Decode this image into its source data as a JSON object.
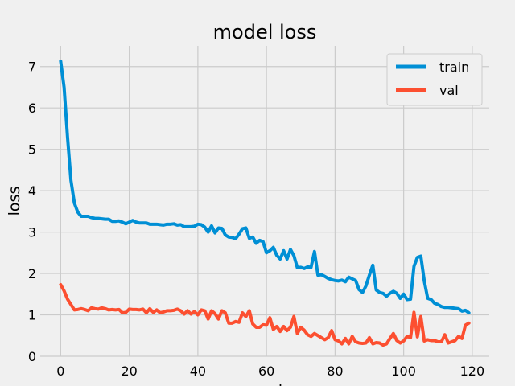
{
  "chart_data": {
    "type": "line",
    "title": "model loss",
    "xlabel": "epoch",
    "ylabel": "loss",
    "xlim": [
      -5.95,
      124.95
    ],
    "ylim": [
      0,
      7.5
    ],
    "xticks": [
      0,
      20,
      40,
      60,
      80,
      100,
      120
    ],
    "yticks": [
      0,
      1,
      2,
      3,
      4,
      5,
      6,
      7
    ],
    "grid": true,
    "legend_position": "top-right",
    "series": [
      {
        "name": "train",
        "color": "#008fd5",
        "y": [
          7.13,
          6.5,
          5.3,
          4.25,
          3.7,
          3.48,
          3.38,
          3.38,
          3.38,
          3.35,
          3.33,
          3.33,
          3.32,
          3.31,
          3.31,
          3.26,
          3.26,
          3.27,
          3.24,
          3.2,
          3.24,
          3.28,
          3.24,
          3.22,
          3.22,
          3.22,
          3.19,
          3.19,
          3.19,
          3.18,
          3.17,
          3.19,
          3.19,
          3.2,
          3.17,
          3.18,
          3.13,
          3.13,
          3.13,
          3.14,
          3.19,
          3.18,
          3.12,
          3.0,
          3.15,
          2.98,
          3.1,
          3.09,
          2.93,
          2.88,
          2.87,
          2.84,
          2.95,
          3.08,
          3.1,
          2.85,
          2.88,
          2.73,
          2.8,
          2.77,
          2.5,
          2.55,
          2.63,
          2.44,
          2.35,
          2.55,
          2.35,
          2.58,
          2.43,
          2.14,
          2.15,
          2.12,
          2.16,
          2.15,
          2.53,
          1.96,
          1.97,
          1.93,
          1.88,
          1.85,
          1.83,
          1.82,
          1.84,
          1.8,
          1.91,
          1.87,
          1.83,
          1.61,
          1.54,
          1.7,
          1.96,
          2.2,
          1.6,
          1.54,
          1.52,
          1.45,
          1.52,
          1.57,
          1.52,
          1.4,
          1.5,
          1.37,
          1.38,
          2.17,
          2.39,
          2.42,
          1.82,
          1.4,
          1.37,
          1.28,
          1.25,
          1.2,
          1.18,
          1.18,
          1.17,
          1.16,
          1.15,
          1.09,
          1.11,
          1.05
        ]
      },
      {
        "name": "val",
        "color": "#fc4f30",
        "y": [
          1.73,
          1.58,
          1.38,
          1.25,
          1.12,
          1.13,
          1.15,
          1.13,
          1.1,
          1.17,
          1.15,
          1.14,
          1.17,
          1.15,
          1.12,
          1.13,
          1.12,
          1.13,
          1.05,
          1.06,
          1.14,
          1.13,
          1.13,
          1.12,
          1.14,
          1.05,
          1.15,
          1.06,
          1.12,
          1.05,
          1.07,
          1.1,
          1.1,
          1.11,
          1.14,
          1.1,
          1.02,
          1.1,
          1.02,
          1.08,
          1.0,
          1.12,
          1.1,
          0.9,
          1.1,
          1.03,
          0.9,
          1.1,
          1.05,
          0.8,
          0.8,
          0.84,
          0.82,
          1.05,
          0.96,
          1.1,
          0.78,
          0.7,
          0.7,
          0.76,
          0.75,
          0.93,
          0.65,
          0.72,
          0.6,
          0.72,
          0.62,
          0.7,
          0.96,
          0.55,
          0.7,
          0.63,
          0.52,
          0.48,
          0.55,
          0.5,
          0.45,
          0.4,
          0.45,
          0.62,
          0.4,
          0.37,
          0.3,
          0.43,
          0.3,
          0.48,
          0.35,
          0.32,
          0.31,
          0.32,
          0.45,
          0.3,
          0.33,
          0.32,
          0.27,
          0.3,
          0.43,
          0.55,
          0.38,
          0.32,
          0.37,
          0.48,
          0.45,
          1.06,
          0.47,
          0.96,
          0.37,
          0.4,
          0.38,
          0.38,
          0.35,
          0.35,
          0.52,
          0.32,
          0.35,
          0.38,
          0.48,
          0.43,
          0.75,
          0.8
        ]
      }
    ]
  }
}
